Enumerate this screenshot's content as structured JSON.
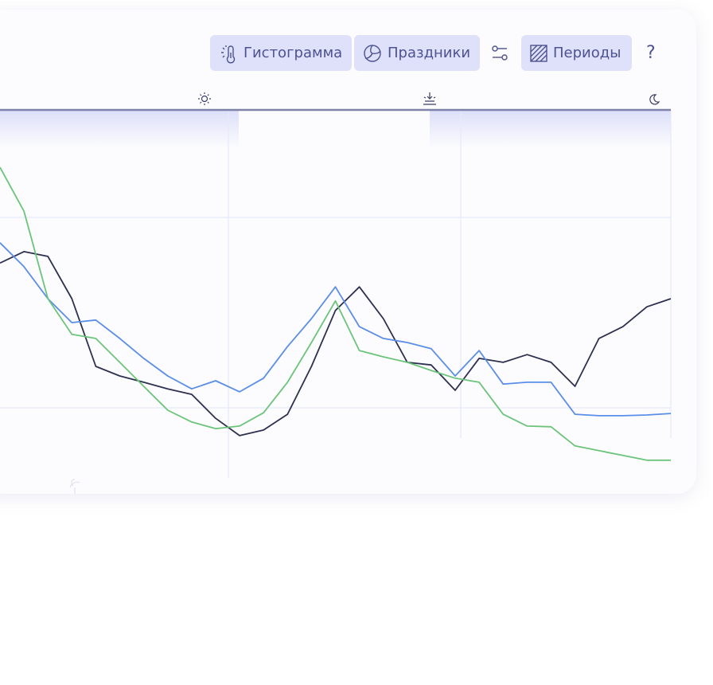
{
  "toolbar": {
    "buttons": [
      "Гистограмма",
      "Праздники",
      "Периоды"
    ],
    "help": "?"
  },
  "chart_data": {
    "type": "line",
    "ylim": [
      0,
      100
    ],
    "series": [
      {
        "color": "#2d3050",
        "values": [
          58.4,
          61.5,
          60.2,
          48.7,
          30.3,
          27.7,
          26.0,
          24.2,
          22.7,
          16.2,
          11.5,
          13.0,
          17.3,
          30.3,
          45.5,
          51.9,
          43.3,
          31.4,
          30.7,
          23.8,
          32.5,
          31.4,
          33.5,
          31.4,
          24.9,
          37.9,
          41.1,
          46.5,
          48.7
        ]
      },
      {
        "color": "#5b8ee6",
        "values": [
          63.9,
          57.4,
          48.7,
          42.2,
          42.9,
          37.9,
          32.5,
          27.7,
          24.2,
          26.4,
          23.4,
          27.1,
          35.7,
          43.3,
          51.9,
          41.1,
          37.9,
          36.8,
          35.1,
          27.7,
          34.6,
          25.5,
          26.0,
          26.0,
          17.3,
          16.9,
          16.9,
          17.1,
          17.5
        ]
      },
      {
        "color": "#6cc47a",
        "values": [
          84.4,
          72.5,
          48.7,
          39.0,
          37.9,
          31.4,
          24.9,
          18.4,
          15.2,
          13.4,
          14.1,
          17.7,
          26.0,
          36.8,
          48.1,
          34.6,
          32.9,
          31.4,
          29.2,
          27.1,
          26.0,
          17.3,
          14.1,
          13.9,
          8.7,
          7.4,
          6.1,
          4.8,
          4.8
        ]
      }
    ]
  }
}
